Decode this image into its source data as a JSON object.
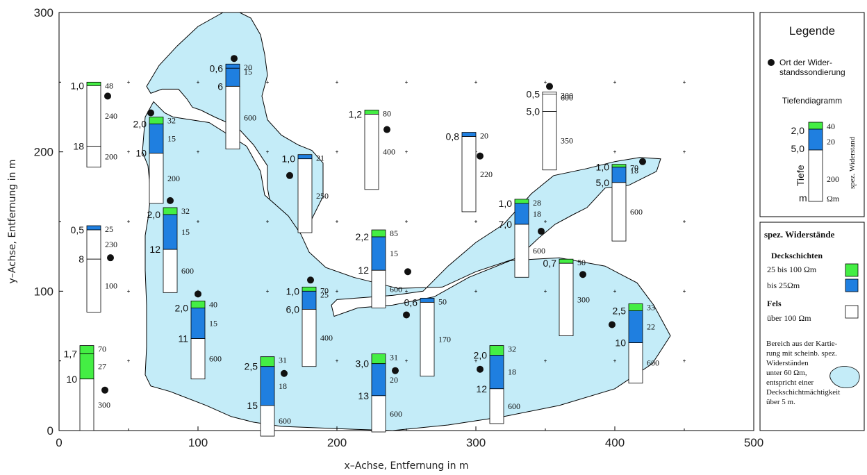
{
  "chart_data": {
    "type": "scatter",
    "xlabel": "x–Achse, Entfernung in m",
    "ylabel": "y–Achse, Entfernung in m",
    "xlim": [
      0,
      500
    ],
    "ylim": [
      0,
      300
    ],
    "x_ticks": [
      "0",
      "100",
      "200",
      "300",
      "400",
      "500"
    ],
    "y_ticks": [
      "0",
      "100",
      "200",
      "300"
    ],
    "colors": {
      "green": "#44ee44",
      "blue": "#1f7fe0",
      "area": "#c4ecf8"
    },
    "area_regions": [
      [
        [
          63,
          247
        ],
        [
          72,
          262
        ],
        [
          85,
          276
        ],
        [
          100,
          290
        ],
        [
          118,
          300
        ],
        [
          130,
          300
        ],
        [
          138,
          296
        ],
        [
          145,
          284
        ],
        [
          148,
          270
        ],
        [
          150,
          255
        ],
        [
          146,
          240
        ],
        [
          150,
          223
        ],
        [
          160,
          212
        ],
        [
          172,
          205
        ],
        [
          182,
          201
        ],
        [
          190,
          192
        ],
        [
          190,
          168
        ],
        [
          182,
          152
        ],
        [
          176,
          146
        ],
        [
          168,
          136
        ],
        [
          166,
          138
        ],
        [
          160,
          145
        ],
        [
          153,
          158
        ],
        [
          150,
          174
        ],
        [
          150,
          190
        ],
        [
          140,
          205
        ],
        [
          128,
          218
        ],
        [
          112,
          225
        ],
        [
          102,
          230
        ],
        [
          96,
          232
        ],
        [
          92,
          238
        ],
        [
          86,
          245
        ],
        [
          74,
          245
        ],
        [
          66,
          242
        ]
      ],
      [
        [
          60,
          200
        ],
        [
          64,
          190
        ],
        [
          66,
          170
        ],
        [
          64,
          152
        ],
        [
          62,
          140
        ],
        [
          62,
          115
        ],
        [
          63,
          90
        ],
        [
          63,
          60
        ],
        [
          62,
          40
        ],
        [
          66,
          32
        ],
        [
          80,
          28
        ],
        [
          106,
          18
        ],
        [
          124,
          10
        ],
        [
          140,
          6
        ],
        [
          160,
          3
        ],
        [
          185,
          2
        ],
        [
          210,
          1
        ],
        [
          240,
          0
        ],
        [
          280,
          4
        ],
        [
          320,
          10
        ],
        [
          360,
          18
        ],
        [
          400,
          30
        ],
        [
          427,
          48
        ],
        [
          440,
          68
        ],
        [
          428,
          90
        ],
        [
          416,
          106
        ],
        [
          393,
          118
        ],
        [
          360,
          124
        ],
        [
          325,
          122
        ],
        [
          295,
          110
        ],
        [
          270,
          96
        ],
        [
          240,
          90
        ],
        [
          215,
          88
        ],
        [
          198,
          82
        ],
        [
          196,
          90
        ],
        [
          200,
          94
        ],
        [
          240,
          97
        ],
        [
          262,
          100
        ],
        [
          280,
          118
        ],
        [
          300,
          135
        ],
        [
          320,
          148
        ],
        [
          340,
          170
        ],
        [
          356,
          183
        ],
        [
          380,
          188
        ],
        [
          400,
          193
        ],
        [
          418,
          196
        ],
        [
          433,
          195
        ],
        [
          430,
          186
        ],
        [
          410,
          176
        ],
        [
          393,
          174
        ],
        [
          380,
          160
        ],
        [
          370,
          155
        ],
        [
          357,
          148
        ],
        [
          345,
          138
        ],
        [
          330,
          124
        ],
        [
          300,
          114
        ],
        [
          276,
          103
        ],
        [
          244,
          102
        ],
        [
          212,
          110
        ],
        [
          192,
          117
        ],
        [
          180,
          128
        ],
        [
          174,
          141
        ],
        [
          165,
          154
        ],
        [
          148,
          169
        ],
        [
          145,
          186
        ],
        [
          135,
          204
        ],
        [
          108,
          221
        ],
        [
          82,
          225
        ],
        [
          76,
          228
        ],
        [
          68,
          236
        ],
        [
          62,
          225
        ]
      ]
    ],
    "area_regions_note": "",
    "soundings": [
      {
        "x": 35,
        "y": 240
      },
      {
        "x": 66,
        "y": 228
      },
      {
        "x": 126,
        "y": 267
      },
      {
        "x": 37,
        "y": 124
      },
      {
        "x": 80,
        "y": 165
      },
      {
        "x": 100,
        "y": 98
      },
      {
        "x": 33,
        "y": 29
      },
      {
        "x": 162,
        "y": 41
      },
      {
        "x": 166,
        "y": 183
      },
      {
        "x": 181,
        "y": 108
      },
      {
        "x": 236,
        "y": 216
      },
      {
        "x": 251,
        "y": 114
      },
      {
        "x": 250,
        "y": 83
      },
      {
        "x": 242,
        "y": 43
      },
      {
        "x": 303,
        "y": 197
      },
      {
        "x": 303,
        "y": 44
      },
      {
        "x": 353,
        "y": 247
      },
      {
        "x": 347,
        "y": 143
      },
      {
        "x": 377,
        "y": 112
      },
      {
        "x": 398,
        "y": 76
      },
      {
        "x": 420,
        "y": 193
      }
    ],
    "depth_columns": [
      {
        "x": 20,
        "top": 250,
        "bottom": 189,
        "layers": [
          {
            "color": "green",
            "thick": 2.5,
            "res": "48"
          },
          {
            "color": "white",
            "thick": 43.5,
            "res": "240"
          },
          {
            "color": "white",
            "thick": 15,
            "res": "200"
          }
        ],
        "depths": [
          "1,0",
          "18"
        ]
      },
      {
        "x": 65,
        "top": 225,
        "bottom": 163,
        "layers": [
          {
            "color": "green",
            "thick": 5,
            "res": "32"
          },
          {
            "color": "blue",
            "thick": 21,
            "res": "15"
          },
          {
            "color": "white",
            "thick": 36,
            "res": "200"
          }
        ],
        "depths": [
          "2,0",
          "10"
        ]
      },
      {
        "x": 120,
        "top": 263,
        "bottom": 202,
        "layers": [
          {
            "color": "blue",
            "thick": 3,
            "res": "20"
          },
          {
            "color": "blue",
            "thick": 13,
            "res": "15"
          },
          {
            "color": "white",
            "thick": 45,
            "res": "600"
          }
        ],
        "depths": [
          "0,6",
          "6"
        ]
      },
      {
        "x": 20,
        "top": 147,
        "bottom": 85,
        "layers": [
          {
            "color": "blue",
            "thick": 3,
            "res": "25"
          },
          {
            "color": "white",
            "thick": 21,
            "res": "230"
          },
          {
            "color": "white",
            "thick": 38,
            "res": "100"
          }
        ],
        "depths": [
          "0,5",
          "8"
        ]
      },
      {
        "x": 75,
        "top": 160,
        "bottom": 99,
        "layers": [
          {
            "color": "green",
            "thick": 5,
            "res": "32"
          },
          {
            "color": "blue",
            "thick": 25,
            "res": "15"
          },
          {
            "color": "white",
            "thick": 31,
            "res": "600"
          }
        ],
        "depths": [
          "2,0",
          "12"
        ]
      },
      {
        "x": 95,
        "top": 93,
        "bottom": 37,
        "layers": [
          {
            "color": "green",
            "thick": 5,
            "res": "40"
          },
          {
            "color": "blue",
            "thick": 22,
            "res": "15"
          },
          {
            "color": "white",
            "thick": 29,
            "res": "600"
          }
        ],
        "depths": [
          "2,0",
          "11"
        ]
      },
      {
        "x": 15,
        "top": 61,
        "bottom": 0,
        "layers": [
          {
            "color": "green",
            "thick": 6,
            "res": "70"
          },
          {
            "color": "green",
            "thick": 18,
            "res": "27"
          },
          {
            "color": "white",
            "thick": 37,
            "res": "300"
          }
        ],
        "depths": [
          "1,7",
          "10"
        ]
      },
      {
        "x": 145,
        "top": 53,
        "bottom": -4,
        "layers": [
          {
            "color": "green",
            "thick": 7,
            "res": "31"
          },
          {
            "color": "blue",
            "thick": 28,
            "res": "18"
          },
          {
            "color": "white",
            "thick": 22,
            "res": "600"
          }
        ],
        "depths": [
          "2,5",
          "15"
        ]
      },
      {
        "x": 172,
        "top": 198,
        "bottom": 142,
        "layers": [
          {
            "color": "blue",
            "thick": 3,
            "res": "21"
          },
          {
            "color": "white",
            "thick": 53,
            "res": "250"
          }
        ],
        "depths": [
          "1,0"
        ]
      },
      {
        "x": 175,
        "top": 103,
        "bottom": 46,
        "layers": [
          {
            "color": "green",
            "thick": 3,
            "res": "70"
          },
          {
            "color": "blue",
            "thick": 13,
            "res": "25"
          },
          {
            "color": "white",
            "thick": 41,
            "res": "400"
          }
        ],
        "depths": [
          "1,0",
          "6,0"
        ]
      },
      {
        "x": 220,
        "top": 230,
        "bottom": 173,
        "layers": [
          {
            "color": "green",
            "thick": 3,
            "res": "80"
          },
          {
            "color": "white",
            "thick": 54,
            "res": "400"
          }
        ],
        "depths": [
          "1,2"
        ]
      },
      {
        "x": 225,
        "top": 144,
        "bottom": 88,
        "layers": [
          {
            "color": "green",
            "thick": 5,
            "res": "85"
          },
          {
            "color": "blue",
            "thick": 24,
            "res": "15"
          },
          {
            "color": "white",
            "thick": 27,
            "res": "600"
          }
        ],
        "depths": [
          "2,2",
          "12"
        ]
      },
      {
        "x": 260,
        "top": 95,
        "bottom": 39,
        "layers": [
          {
            "color": "blue",
            "thick": 3,
            "res": "50"
          },
          {
            "color": "white",
            "thick": 53,
            "res": "170"
          }
        ],
        "depths": [
          "0,6"
        ]
      },
      {
        "x": 225,
        "top": 55,
        "bottom": -1,
        "layers": [
          {
            "color": "green",
            "thick": 7,
            "res": "31"
          },
          {
            "color": "blue",
            "thick": 23,
            "res": "20"
          },
          {
            "color": "white",
            "thick": 26,
            "res": "600"
          }
        ],
        "depths": [
          "3,0",
          "13"
        ]
      },
      {
        "x": 290,
        "top": 214,
        "bottom": 157,
        "layers": [
          {
            "color": "blue",
            "thick": 3,
            "res": "20"
          },
          {
            "color": "white",
            "thick": 54,
            "res": "220"
          }
        ],
        "depths": [
          "0,8"
        ]
      },
      {
        "x": 310,
        "top": 61,
        "bottom": 5,
        "layers": [
          {
            "color": "green",
            "thick": 7,
            "res": "32"
          },
          {
            "color": "blue",
            "thick": 24,
            "res": "18"
          },
          {
            "color": "white",
            "thick": 25,
            "res": "600"
          }
        ],
        "depths": [
          "2,0",
          "12"
        ]
      },
      {
        "x": 348,
        "top": 243,
        "bottom": 187,
        "layers": [
          {
            "color": "white",
            "thick": 1.5,
            "res": "300"
          },
          {
            "color": "white",
            "thick": 12.5,
            "res": "600"
          },
          {
            "color": "white",
            "thick": 42,
            "res": "350"
          }
        ],
        "depths": [
          "0,5",
          "5,0"
        ]
      },
      {
        "x": 328,
        "top": 166,
        "bottom": 110,
        "layers": [
          {
            "color": "green",
            "thick": 3,
            "res": "28"
          },
          {
            "color": "blue",
            "thick": 15,
            "res": "18"
          },
          {
            "color": "white",
            "thick": 38,
            "res": "600"
          }
        ],
        "depths": [
          "1,0",
          "7,0"
        ]
      },
      {
        "x": 360,
        "top": 123,
        "bottom": 68,
        "layers": [
          {
            "color": "green",
            "thick": 3,
            "res": "50"
          },
          {
            "color": "white",
            "thick": 52,
            "res": "300"
          }
        ],
        "depths": [
          "0,7"
        ]
      },
      {
        "x": 398,
        "top": 191,
        "bottom": 136,
        "layers": [
          {
            "color": "green",
            "thick": 2,
            "res": "70"
          },
          {
            "color": "blue",
            "thick": 11,
            "res": "18"
          },
          {
            "color": "white",
            "thick": 42,
            "res": "600"
          }
        ],
        "depths": [
          "1,0",
          "5,0"
        ]
      },
      {
        "x": 410,
        "top": 91,
        "bottom": 34,
        "layers": [
          {
            "color": "green",
            "thick": 5,
            "res": "33"
          },
          {
            "color": "blue",
            "thick": 23,
            "res": "22"
          },
          {
            "color": "white",
            "thick": 29,
            "res": "600"
          }
        ],
        "depths": [
          "2,5",
          "10"
        ]
      }
    ]
  },
  "legend": {
    "title": "Legende",
    "point_label_1": "Ort der Wider-",
    "point_label_2": "standssondierung",
    "depth_diagram": "Tiefendiagramm",
    "depth_word": "Tiefe",
    "resist_word": "spez. Widerstand",
    "sample_depth_1": "2,0",
    "sample_depth_2": "5,0",
    "sample_res_1": "40",
    "sample_res_2": "20",
    "sample_res_3": "200",
    "unit_m": "m",
    "unit_ohm": "Ωm"
  },
  "legend2": {
    "title": "spez. Widerstände",
    "deck": "Deckschichten",
    "green_label": "25 bis 100 Ωm",
    "blue_label": "bis 25Ωm",
    "fels": "Fels",
    "white_label": "über 100 Ωm",
    "area_note_1": "Bereich aus der Kartie-",
    "area_note_2": "rung mit scheinb. spez.",
    "area_note_3": "Widerständen",
    "area_note_4": "unter 60 Ωm,",
    "area_note_5": "entspricht einer",
    "area_note_6": "Deckschichtmächtigkeit",
    "area_note_7": "über 5 m."
  }
}
